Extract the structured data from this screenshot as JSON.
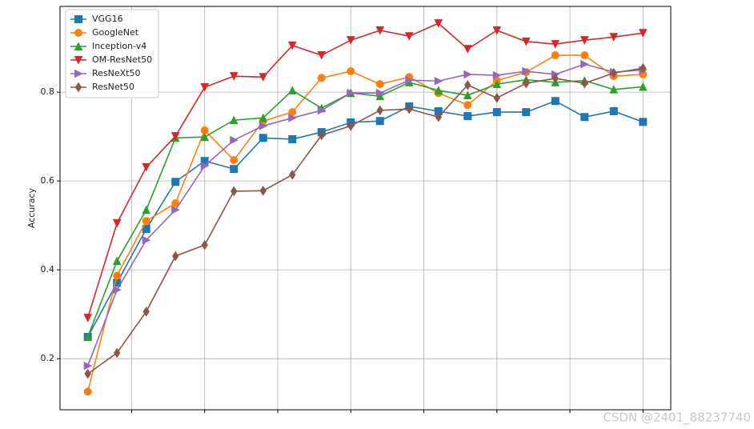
{
  "chart_data": {
    "type": "line",
    "y_label": "Accuracy",
    "x": [
      1,
      2,
      3,
      4,
      5,
      6,
      7,
      8,
      9,
      10,
      11,
      12,
      13,
      14,
      15,
      16,
      17,
      18,
      19,
      20
    ],
    "xlim": [
      0.05,
      20.95
    ],
    "xticks": [
      2.5,
      5,
      7.5,
      10,
      12.5,
      15,
      17.5,
      20
    ],
    "ylim": [
      0.085,
      0.993
    ],
    "yticks": [
      0.2,
      0.4,
      0.6,
      0.8
    ],
    "grid": true,
    "legend": "upper-left",
    "series": [
      {
        "name": "VGG16",
        "color": "#1f77b4",
        "marker": "square",
        "values": [
          0.249,
          0.371,
          0.492,
          0.598,
          0.645,
          0.627,
          0.697,
          0.694,
          0.71,
          0.732,
          0.735,
          0.768,
          0.757,
          0.746,
          0.755,
          0.755,
          0.78,
          0.744,
          0.757,
          0.733
        ]
      },
      {
        "name": "GoogleNet",
        "color": "#ff7f0e",
        "marker": "circle",
        "values": [
          0.126,
          0.387,
          0.51,
          0.55,
          0.714,
          0.647,
          0.735,
          0.755,
          0.832,
          0.847,
          0.818,
          0.834,
          0.798,
          0.771,
          0.826,
          0.845,
          0.883,
          0.883,
          0.836,
          0.84
        ]
      },
      {
        "name": "Inception-v4",
        "color": "#2ca02c",
        "marker": "triangle-up",
        "values": [
          0.249,
          0.42,
          0.535,
          0.697,
          0.699,
          0.737,
          0.742,
          0.804,
          0.764,
          0.798,
          0.791,
          0.822,
          0.804,
          0.793,
          0.818,
          0.828,
          0.822,
          0.826,
          0.806,
          0.812
        ]
      },
      {
        "name": "OM-ResNet50",
        "color": "#d62728",
        "marker": "triangle-down",
        "values": [
          0.292,
          0.505,
          0.631,
          0.701,
          0.811,
          0.836,
          0.834,
          0.905,
          0.883,
          0.917,
          0.939,
          0.926,
          0.955,
          0.897,
          0.939,
          0.914,
          0.908,
          0.917,
          0.924,
          0.933
        ]
      },
      {
        "name": "ResNeXt50",
        "color": "#9467bd",
        "marker": "triangle-right",
        "values": [
          0.184,
          0.355,
          0.467,
          0.535,
          0.634,
          0.692,
          0.724,
          0.742,
          0.759,
          0.798,
          0.798,
          0.827,
          0.825,
          0.84,
          0.838,
          0.847,
          0.84,
          0.863,
          0.845,
          0.85
        ]
      },
      {
        "name": "ResNet50",
        "color": "#8c564b",
        "marker": "diamond",
        "values": [
          0.166,
          0.213,
          0.306,
          0.431,
          0.456,
          0.577,
          0.578,
          0.614,
          0.703,
          0.724,
          0.759,
          0.762,
          0.744,
          0.816,
          0.787,
          0.82,
          0.831,
          0.82,
          0.843,
          0.854
        ]
      }
    ],
    "watermark": "CSDN @2401_88237740"
  }
}
